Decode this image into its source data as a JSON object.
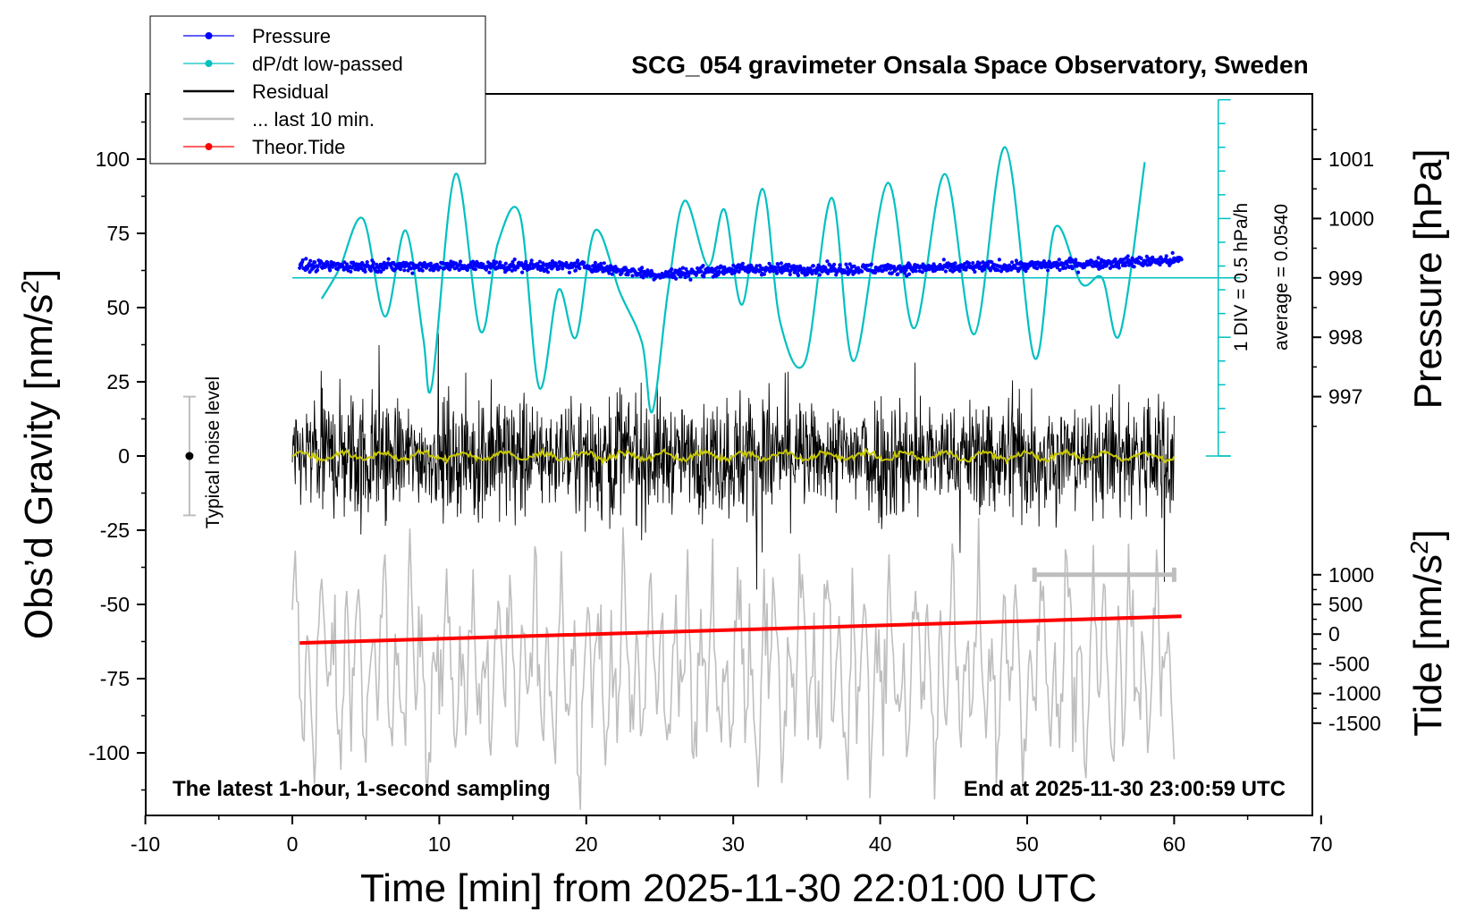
{
  "chart_data": {
    "type": "line",
    "title": "SCG_054 gravimeter Onsala Space Observatory, Sweden",
    "xlabel": "Time [min] from 2025-11-30 22:01:00 UTC",
    "ylabel_left": "Obs’d Gravity [nm/s",
    "ylabel_left_sup": "2",
    "ylabel_left_end": "]",
    "ylabel_right_top": "Pressure [hPa]",
    "ylabel_right_bottom": "Tide [nm/s",
    "ylabel_right_bottom_sup": "2",
    "ylabel_right_bottom_end": "]",
    "xlim": [
      -10,
      70
    ],
    "ylim": [
      -120,
      120
    ],
    "x_ticks": [
      "-10",
      "0",
      "10",
      "20",
      "30",
      "40",
      "50",
      "60",
      "70"
    ],
    "x_tick_values": [
      -10,
      0,
      10,
      20,
      30,
      40,
      50,
      60,
      70
    ],
    "y_ticks": [
      "100",
      "75",
      "50",
      "25",
      "0",
      "-25",
      "-50",
      "-75",
      "-100"
    ],
    "y_tick_values": [
      100,
      75,
      50,
      25,
      0,
      -25,
      -50,
      -75,
      -100
    ],
    "pressure_ticks": [
      "1001",
      "1000",
      "999",
      "998",
      "997"
    ],
    "pressure_tick_values": [
      1001,
      1000,
      999,
      998,
      997
    ],
    "pressure_map": {
      "value_at_zero": 1001,
      "gravity_at_ref": 100,
      "gravity_per_hpa": 20
    },
    "tide_ticks": [
      "1000",
      "500",
      "0",
      "-500",
      "-1000",
      "-1500"
    ],
    "tide_tick_values": [
      1000,
      500,
      0,
      -500,
      -1000,
      -1500
    ],
    "tide_map": {
      "tide_ref": 0,
      "gravity_at_ref": -60,
      "gravity_per_unit": 0.02
    },
    "legend": [
      {
        "name": "Pressure",
        "color": "#0000ff",
        "marker": true
      },
      {
        "name": "dP/dt low-passed",
        "color": "#00c0c0",
        "marker": true
      },
      {
        "name": "Residual",
        "color": "#000000",
        "marker": false
      },
      {
        "name": "... last 10 min.",
        "color": "#bebebe",
        "marker": false
      },
      {
        "name": "Theor.Tide",
        "color": "#ff0000",
        "marker": true
      }
    ],
    "legend_position": "top-left",
    "annotations": {
      "left": "The latest 1-hour, 1-second sampling",
      "right": "End at 2025-11-30 23:00:59 UTC",
      "noise": "Typical noise level",
      "div": "1 DIV = 0.5 hPa/h",
      "average": "average = 0.0540"
    },
    "noise_bar": {
      "x": -7,
      "center": 0,
      "half_range": 20
    },
    "dpdt_scale": {
      "x": 63,
      "bottom": 0,
      "top": 120,
      "baseline": 60
    },
    "colors": {
      "pressure": "#0000ff",
      "dpdt": "#00c0c0",
      "residual": "#000000",
      "last10": "#bebebe",
      "tide": "#ff0000",
      "residual_lowpass": "#c8c800"
    },
    "series": [
      {
        "name": "dP/dt low-passed",
        "x": [
          2,
          3.2,
          4.8,
          6.3,
          7.7,
          8.9,
          9.5,
          11.1,
          12.8,
          14,
          15.5,
          16.8,
          18.1,
          19.3,
          20.6,
          22.3,
          23.8,
          24.5,
          25.6,
          26.7,
          28.3,
          29.4,
          30.6,
          32,
          33.2,
          34.9,
          36.7,
          38.2,
          40.5,
          42.3,
          44.4,
          46.4,
          48.5,
          50.5,
          51.9,
          53.7,
          55.1,
          56.3,
          58
        ],
        "y": [
          53,
          63,
          80,
          47,
          76,
          40,
          24,
          95,
          42,
          72,
          81,
          23,
          56,
          40,
          76,
          55,
          38,
          15,
          57,
          86,
          64,
          83,
          51,
          90,
          45,
          32,
          87,
          32,
          92,
          43,
          95,
          41,
          104,
          33,
          77,
          58,
          60,
          41,
          99
        ]
      },
      {
        "name": "Theor.Tide",
        "x": [
          0.5,
          60.5
        ],
        "tide_values": [
          -150,
          300
        ]
      }
    ],
    "pressure_trend": {
      "x": [
        0.5,
        10,
        20,
        25,
        30,
        40,
        50,
        60.5
      ],
      "hpa": [
        999.2,
        999.2,
        999.2,
        999.05,
        999.15,
        999.15,
        999.2,
        999.3
      ]
    },
    "residual_envelope": {
      "x_start": 0,
      "x_end": 60,
      "typical_amplitude": 30,
      "extreme_range": [
        -45,
        52
      ]
    },
    "last10_envelope": {
      "x_start": 0,
      "x_end": 60,
      "center": -72,
      "amplitude": 35
    },
    "last10_marker": {
      "x_start": 50.5,
      "x_end": 60,
      "y": -40
    }
  }
}
